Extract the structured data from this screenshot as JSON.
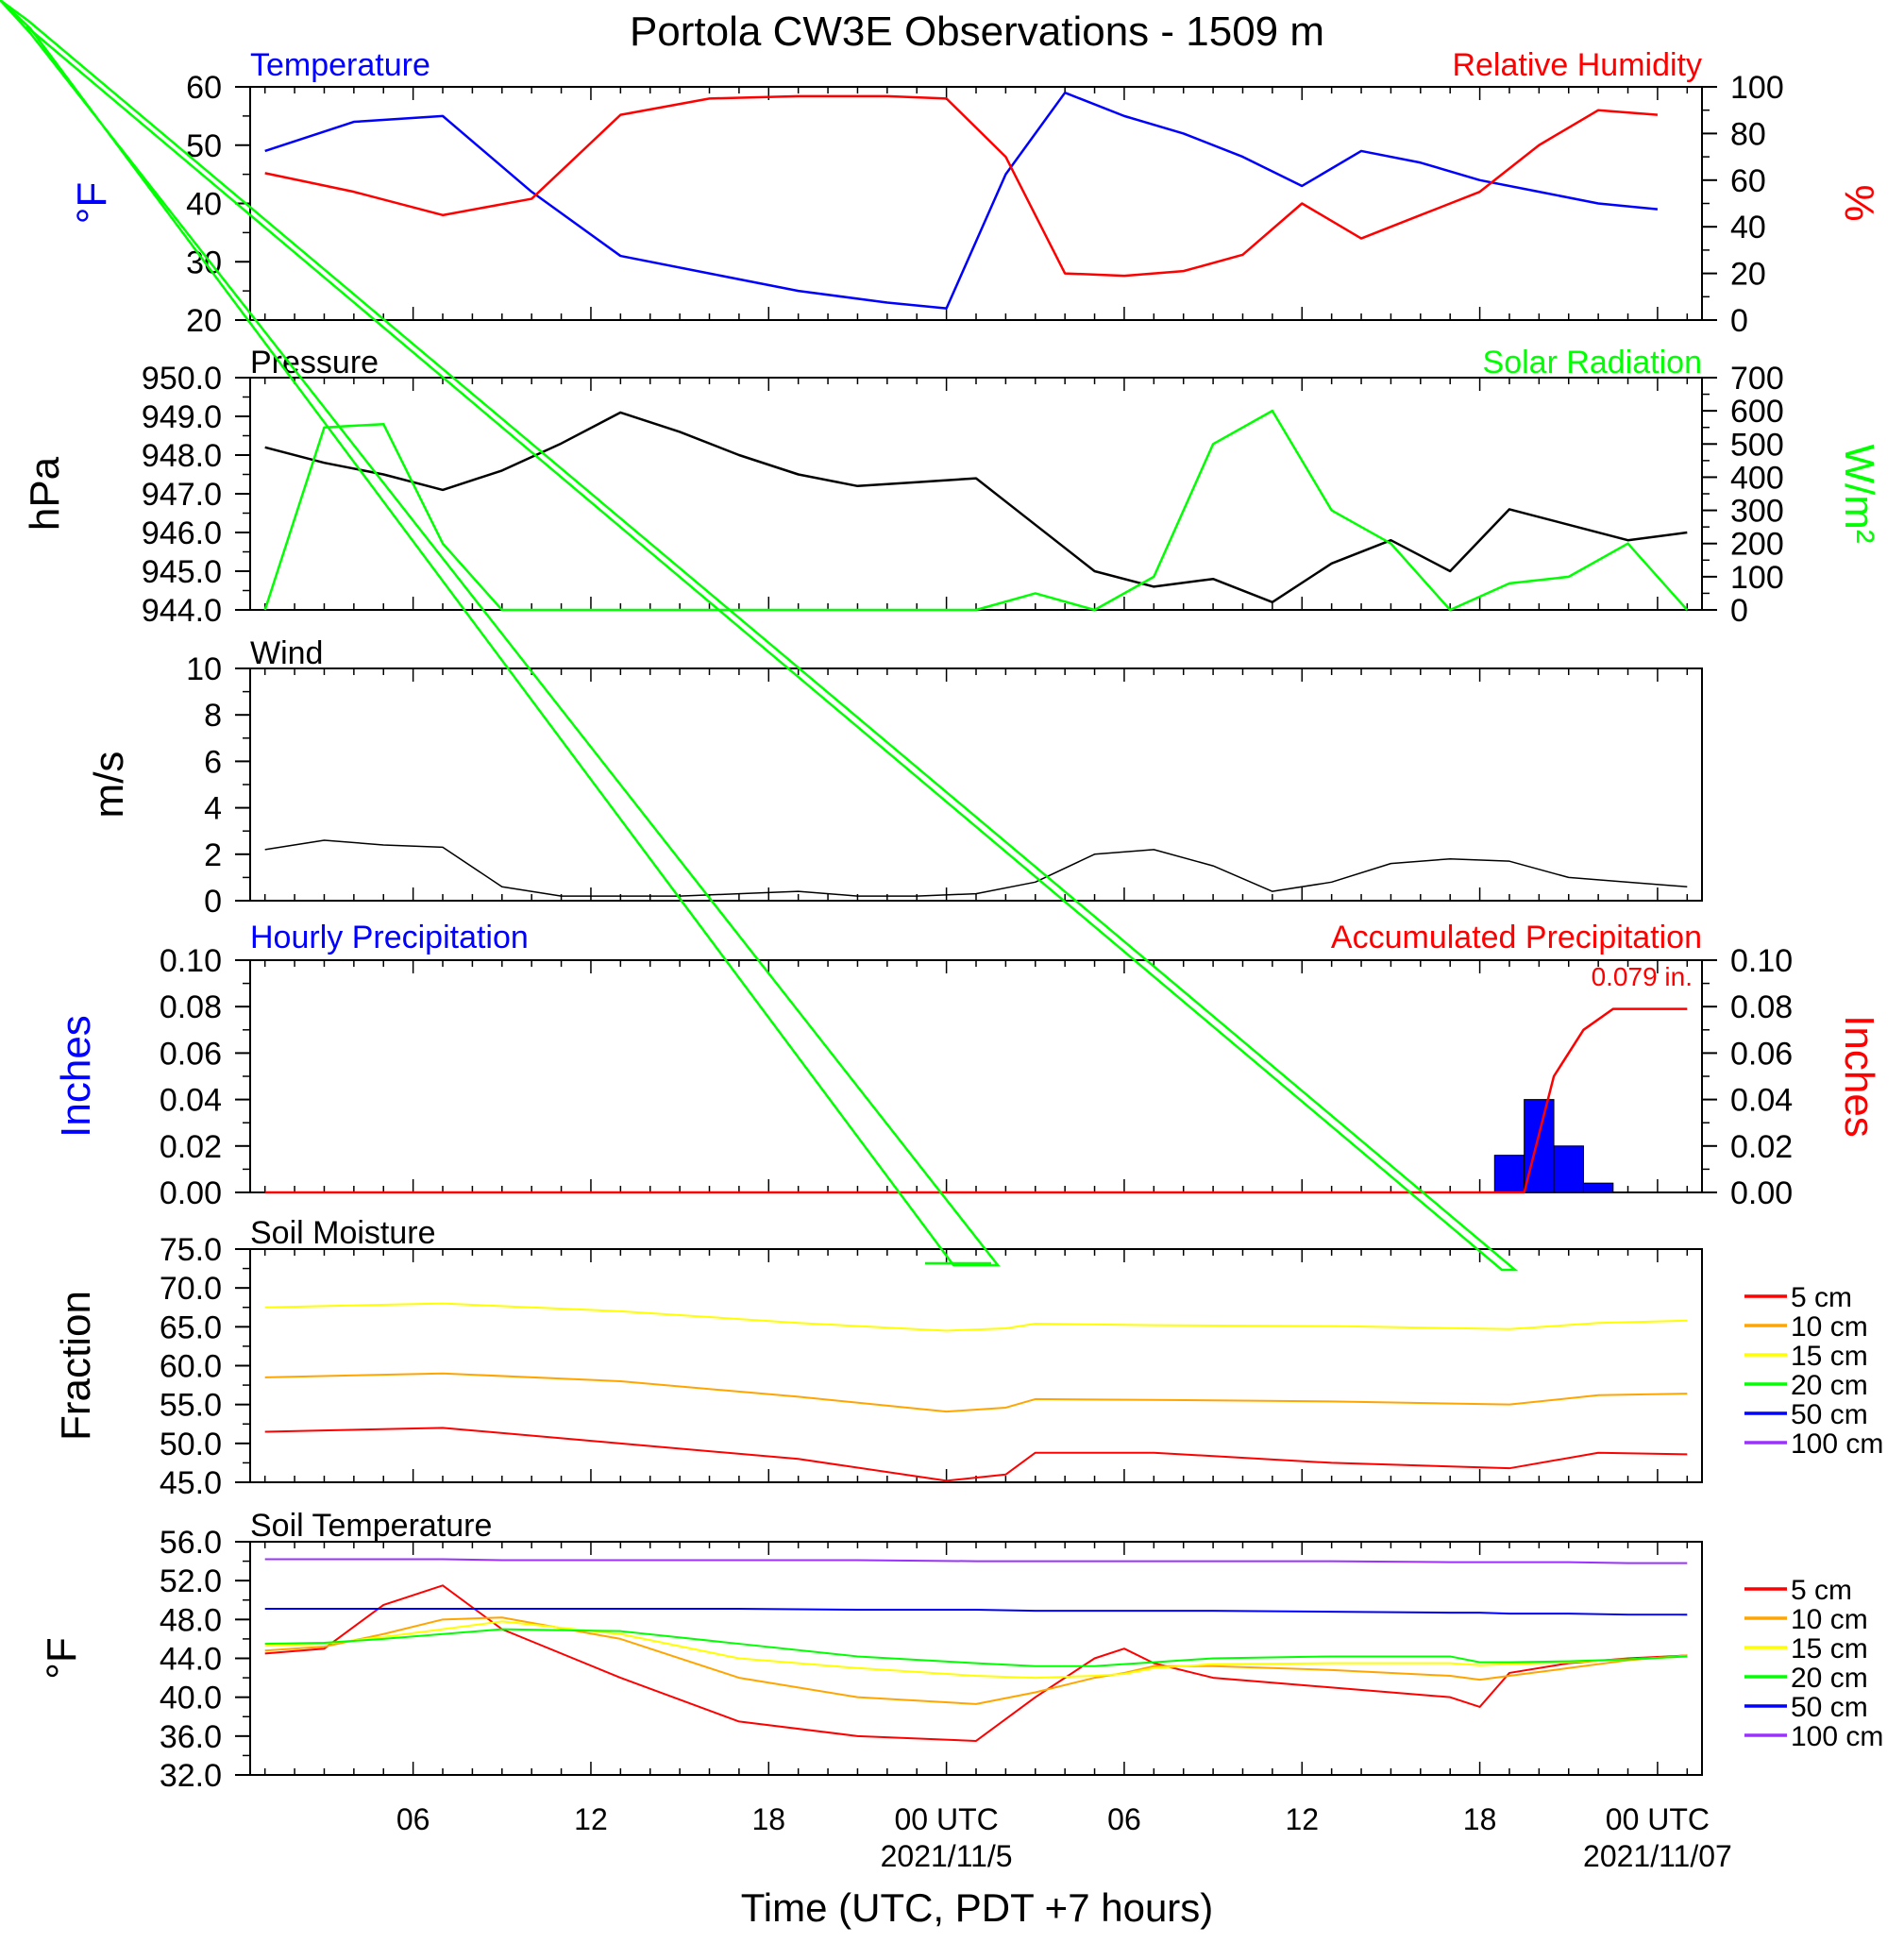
{
  "title": "Portola CW3E Observations - 1509 m",
  "xlabel": "Time (UTC, PDT +7 hours)",
  "x_ticks": [
    "06",
    "12",
    "18",
    "00 UTC",
    "06",
    "12",
    "18",
    "00 UTC"
  ],
  "x_dates": [
    "2021/11/5",
    "2021/11/07"
  ],
  "colors": {
    "blue": "#0000ff",
    "red": "#ff0000",
    "green": "#00ff00",
    "black": "#000000",
    "orange": "#ffa500",
    "yellow": "#ffff00",
    "purple": "#9b30ff"
  },
  "chart_data": [
    {
      "type": "line",
      "panel": "temperature_humidity",
      "left_label": "Temperature",
      "right_label": "Relative Humidity",
      "left_unit": "°F",
      "right_unit": "%",
      "left_ticks": [
        "60",
        "50",
        "40",
        "30",
        "20"
      ],
      "right_ticks": [
        "100",
        "80",
        "60",
        "40",
        "20",
        "0"
      ],
      "ylim_left": [
        20,
        60
      ],
      "ylim_right": [
        0,
        100
      ],
      "x_hours": [
        0,
        3,
        6,
        9,
        12,
        15,
        18,
        21,
        23,
        25,
        27,
        29,
        31,
        33,
        35,
        37,
        39,
        41,
        43,
        45,
        47
      ],
      "series": [
        {
          "name": "Temperature",
          "axis": "left",
          "color": "#0000ff",
          "values": [
            49,
            54,
            55,
            42,
            31,
            28,
            25,
            23,
            22,
            45,
            59,
            55,
            52,
            48,
            43,
            49,
            47,
            44,
            42,
            40,
            39
          ]
        },
        {
          "name": "Relative Humidity",
          "axis": "right",
          "color": "#ff0000",
          "values": [
            63,
            55,
            45,
            52,
            88,
            95,
            96,
            96,
            95,
            70,
            20,
            19,
            21,
            28,
            50,
            35,
            45,
            55,
            75,
            90,
            88
          ]
        }
      ]
    },
    {
      "type": "line",
      "panel": "pressure_solar",
      "left_label": "Pressure",
      "right_label": "Solar Radiation",
      "left_unit": "hPa",
      "right_unit": "W/m²",
      "left_ticks": [
        "950.0",
        "949.0",
        "948.0",
        "947.0",
        "946.0",
        "945.0",
        "944.0"
      ],
      "right_ticks": [
        "700",
        "600",
        "500",
        "400",
        "300",
        "200",
        "100",
        "0"
      ],
      "ylim_left": [
        944,
        950
      ],
      "ylim_right": [
        0,
        700
      ],
      "x_hours": [
        0,
        2,
        4,
        6,
        8,
        10,
        12,
        14,
        16,
        18,
        20,
        22,
        24,
        26,
        28,
        30,
        32,
        34,
        36,
        38,
        40,
        42,
        44,
        46,
        48
      ],
      "series": [
        {
          "name": "Pressure",
          "axis": "left",
          "color": "#000000",
          "values": [
            948.2,
            947.8,
            947.5,
            947.1,
            947.6,
            948.3,
            949.1,
            948.6,
            948.0,
            947.5,
            947.2,
            947.3,
            947.4,
            946.2,
            945.0,
            944.6,
            944.8,
            944.2,
            945.2,
            945.8,
            945.0,
            946.6,
            946.2,
            945.8,
            946.0
          ]
        },
        {
          "name": "Solar Radiation",
          "axis": "right",
          "color": "#00ff00",
          "values": [
            0,
            550,
            560,
            200,
            0,
            0,
            0,
            0,
            0,
            0,
            0,
            0,
            0,
            50,
            0,
            100,
            500,
            600,
            300,
            200,
            0,
            80,
            100,
            200,
            0
          ]
        }
      ]
    },
    {
      "type": "line",
      "panel": "wind",
      "label": "Wind",
      "unit": "m/s",
      "ticks": [
        "10",
        "8",
        "6",
        "4",
        "2",
        "0"
      ],
      "ylim": [
        0,
        10
      ],
      "x_hours": [
        0,
        2,
        4,
        6,
        8,
        10,
        12,
        14,
        16,
        18,
        20,
        22,
        24,
        26,
        28,
        30,
        32,
        34,
        36,
        38,
        40,
        42,
        44,
        46,
        48
      ],
      "series": [
        {
          "name": "Wind Speed",
          "color": "#000000",
          "values": [
            2.2,
            2.6,
            2.4,
            2.3,
            0.6,
            0.2,
            0.2,
            0.2,
            0.3,
            0.4,
            0.2,
            0.2,
            0.3,
            0.8,
            2.0,
            2.2,
            1.5,
            0.4,
            0.8,
            1.6,
            1.8,
            1.7,
            1.0,
            0.8,
            0.6
          ]
        }
      ]
    },
    {
      "type": "bar",
      "panel": "precipitation",
      "left_label": "Hourly Precipitation",
      "right_label": "Accumulated Precipitation",
      "left_unit": "Inches",
      "right_unit": "Inches",
      "annotation": "0.079 in.",
      "left_ticks": [
        "0.10",
        "0.08",
        "0.06",
        "0.04",
        "0.02",
        "0.00"
      ],
      "right_ticks": [
        "0.10",
        "0.08",
        "0.06",
        "0.04",
        "0.02",
        "0.00"
      ],
      "ylim": [
        0,
        0.1
      ],
      "bar_hours": [
        42,
        43,
        44,
        45
      ],
      "bar_values": [
        0.016,
        0.04,
        0.02,
        0.004
      ],
      "accum_hours": [
        0,
        42.5,
        43.5,
        44.5,
        45.5,
        48
      ],
      "accum_values": [
        0,
        0,
        0.05,
        0.07,
        0.079,
        0.079
      ]
    },
    {
      "type": "line",
      "panel": "soil_moisture",
      "label": "Soil Moisture",
      "unit": "Fraction",
      "ticks": [
        "75.0",
        "70.0",
        "65.0",
        "60.0",
        "55.0",
        "50.0",
        "45.0"
      ],
      "ylim": [
        45,
        75
      ],
      "legend": [
        "5 cm",
        "10 cm",
        "15 cm",
        "20 cm",
        "50 cm",
        "100 cm"
      ],
      "x_hours": [
        0,
        6,
        12,
        18,
        23,
        25,
        26,
        30,
        36,
        42,
        45,
        48
      ],
      "series": [
        {
          "name": "5 cm",
          "color": "#ff0000",
          "values": [
            51.5,
            52,
            50,
            48,
            45.2,
            46,
            48.8,
            48.8,
            47.5,
            46.8,
            48.8,
            48.6
          ]
        },
        {
          "name": "10 cm",
          "color": "#ffa500",
          "values": [
            58.5,
            59,
            58,
            56,
            54.1,
            54.6,
            55.7,
            55.6,
            55.4,
            55.0,
            56.2,
            56.4
          ]
        },
        {
          "name": "15 cm",
          "color": "#ffff00",
          "values": [
            67.5,
            68,
            67,
            65.5,
            64.5,
            64.8,
            65.4,
            65.2,
            65.1,
            64.7,
            65.5,
            65.8
          ]
        }
      ]
    },
    {
      "type": "line",
      "panel": "soil_temperature",
      "label": "Soil Temperature",
      "unit": "°F",
      "ticks": [
        "56.0",
        "52.0",
        "48.0",
        "44.0",
        "40.0",
        "36.0",
        "32.0"
      ],
      "ylim": [
        32,
        56
      ],
      "legend": [
        "5 cm",
        "10 cm",
        "15 cm",
        "20 cm",
        "50 cm",
        "100 cm"
      ],
      "x_hours": [
        0,
        2,
        4,
        6,
        8,
        12,
        16,
        20,
        24,
        26,
        28,
        29,
        30,
        32,
        36,
        40,
        41,
        42,
        44,
        46,
        48
      ],
      "series": [
        {
          "name": "5 cm",
          "color": "#ff0000",
          "values": [
            44.5,
            45,
            49.5,
            51.5,
            47,
            42,
            37.5,
            36,
            35.5,
            40,
            44,
            45,
            43.5,
            42,
            41,
            40,
            39,
            42.5,
            43.5,
            44,
            44.3
          ]
        },
        {
          "name": "10 cm",
          "color": "#ffa500",
          "values": [
            44.8,
            45.2,
            46.5,
            48,
            48.2,
            46,
            42,
            40,
            39.3,
            40.5,
            42,
            42.5,
            43.2,
            43.2,
            42.8,
            42.2,
            41.8,
            42.2,
            43,
            43.8,
            44.3
          ]
        },
        {
          "name": "15 cm",
          "color": "#ffff00",
          "values": [
            45.3,
            45.5,
            46.2,
            47,
            47.8,
            46.5,
            44,
            43,
            42.2,
            42,
            42.2,
            42.4,
            43.0,
            43.4,
            43.5,
            43.5,
            43.3,
            43.4,
            43.6,
            43.9,
            44.2
          ]
        },
        {
          "name": "20 cm",
          "color": "#00ff00",
          "values": [
            45.5,
            45.6,
            46,
            46.5,
            47,
            46.8,
            45.5,
            44.2,
            43.5,
            43.2,
            43.2,
            43.4,
            43.6,
            44.0,
            44.2,
            44.2,
            43.6,
            43.6,
            43.7,
            43.9,
            44.2
          ]
        },
        {
          "name": "50 cm",
          "color": "#0000ff",
          "values": [
            49.1,
            49.1,
            49.1,
            49.1,
            49.1,
            49.1,
            49.1,
            49.0,
            49.0,
            48.9,
            48.9,
            48.9,
            48.9,
            48.9,
            48.8,
            48.7,
            48.7,
            48.6,
            48.6,
            48.5,
            48.5
          ]
        },
        {
          "name": "100 cm",
          "color": "#9b30ff",
          "values": [
            54.2,
            54.2,
            54.2,
            54.2,
            54.1,
            54.1,
            54.1,
            54.1,
            54.0,
            54.0,
            54.0,
            54.0,
            54.0,
            54.0,
            54.0,
            53.9,
            53.9,
            53.9,
            53.9,
            53.8,
            53.8
          ]
        }
      ]
    }
  ]
}
